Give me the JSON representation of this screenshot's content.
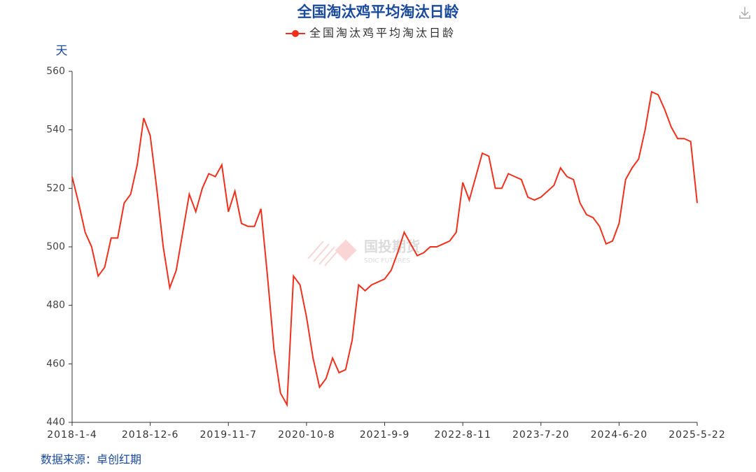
{
  "chart_data": {
    "type": "line",
    "title": "全国淘汰鸡平均淘汰日龄",
    "y_label": "天",
    "source": "数据来源：卓创红期",
    "watermark": "国投期货",
    "watermark_sub": "SDIC FUTURES",
    "categories": [
      "2018-1-4",
      null,
      null,
      null,
      null,
      null,
      null,
      null,
      null,
      null,
      null,
      null,
      "2018-12-6",
      null,
      null,
      null,
      null,
      null,
      null,
      null,
      null,
      null,
      null,
      null,
      "2019-11-7",
      null,
      null,
      null,
      null,
      null,
      null,
      null,
      null,
      null,
      null,
      null,
      "2020-10-8",
      null,
      null,
      null,
      null,
      null,
      null,
      null,
      null,
      null,
      null,
      null,
      "2021-9-9",
      null,
      null,
      null,
      null,
      null,
      null,
      null,
      null,
      null,
      null,
      null,
      "2022-8-11",
      null,
      null,
      null,
      null,
      null,
      null,
      null,
      null,
      null,
      null,
      null,
      "2023-7-20",
      null,
      null,
      null,
      null,
      null,
      null,
      null,
      null,
      null,
      null,
      null,
      "2024-6-20",
      null,
      null,
      null,
      null,
      null,
      null,
      null,
      null,
      null,
      null,
      null,
      "2025-5-22"
    ],
    "series": [
      {
        "name": "全国淘汰鸡平均淘汰日龄",
        "color": "#f0301c",
        "values": [
          524,
          515,
          505,
          500,
          490,
          493,
          503,
          503,
          515,
          518,
          528,
          544,
          538,
          520,
          500,
          486,
          492,
          505,
          518,
          512,
          520,
          525,
          524,
          528,
          512,
          519,
          508,
          507,
          507,
          513,
          490,
          465,
          450,
          446,
          490,
          487,
          476,
          462,
          452,
          455,
          462,
          457,
          458,
          468,
          487,
          485,
          487,
          488,
          489,
          492,
          498,
          505,
          501,
          497,
          498,
          500,
          500,
          501,
          502,
          505,
          522,
          516,
          524,
          532,
          531,
          520,
          520,
          525,
          524,
          523,
          517,
          516,
          517,
          519,
          521,
          527,
          524,
          523,
          515,
          511,
          510,
          507,
          501,
          502,
          508,
          523,
          527,
          530,
          540,
          553,
          552,
          547,
          541,
          537,
          537,
          536,
          515
        ]
      }
    ],
    "ylim": [
      440,
      560
    ],
    "yticks": [
      440,
      460,
      480,
      500,
      520,
      540,
      560
    ],
    "grid": false
  }
}
